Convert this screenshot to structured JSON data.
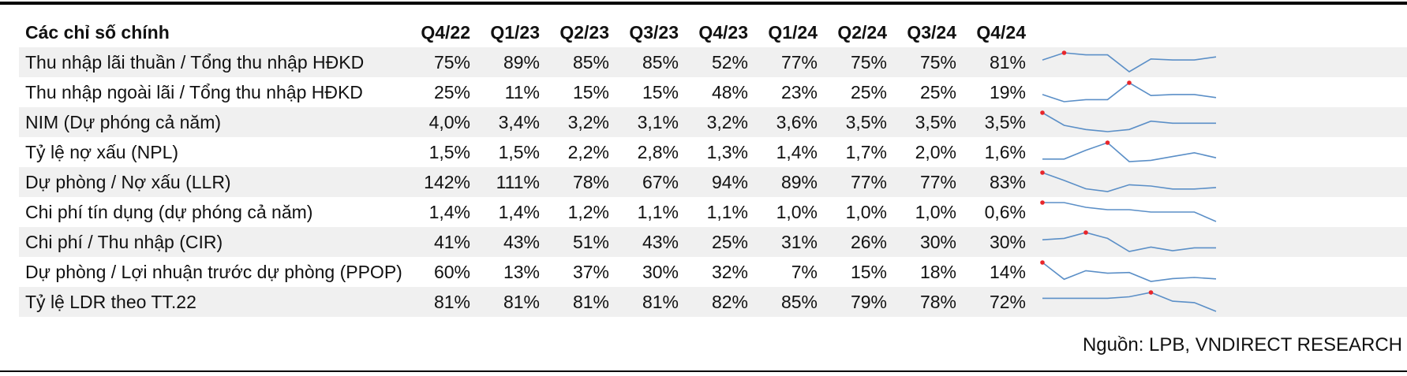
{
  "table": {
    "header_label": "Các chỉ số chính",
    "columns": [
      "Q4/22",
      "Q1/23",
      "Q2/23",
      "Q3/23",
      "Q4/23",
      "Q1/24",
      "Q2/24",
      "Q3/24",
      "Q4/24"
    ],
    "rows": [
      {
        "label": "Thu nhập lãi thuần / Tổng thu nhập HĐKD",
        "values": [
          "75%",
          "89%",
          "85%",
          "85%",
          "52%",
          "77%",
          "75%",
          "75%",
          "81%"
        ],
        "series": [
          75,
          89,
          85,
          85,
          52,
          77,
          75,
          75,
          81
        ]
      },
      {
        "label": "Thu nhập ngoài lãi / Tổng thu nhập HĐKD",
        "values": [
          "25%",
          "11%",
          "15%",
          "15%",
          "48%",
          "23%",
          "25%",
          "25%",
          "19%"
        ],
        "series": [
          25,
          11,
          15,
          15,
          48,
          23,
          25,
          25,
          19
        ]
      },
      {
        "label": "NIM (Dự phóng cả năm)",
        "values": [
          "4,0%",
          "3,4%",
          "3,2%",
          "3,1%",
          "3,2%",
          "3,6%",
          "3,5%",
          "3,5%",
          "3,5%"
        ],
        "series": [
          4.0,
          3.4,
          3.2,
          3.1,
          3.2,
          3.6,
          3.5,
          3.5,
          3.5
        ]
      },
      {
        "label": "Tỷ lệ nợ xấu (NPL)",
        "values": [
          "1,5%",
          "1,5%",
          "2,2%",
          "2,8%",
          "1,3%",
          "1,4%",
          "1,7%",
          "2,0%",
          "1,6%"
        ],
        "series": [
          1.5,
          1.5,
          2.2,
          2.8,
          1.3,
          1.4,
          1.7,
          2.0,
          1.6
        ]
      },
      {
        "label": "Dự phòng / Nợ xấu (LLR)",
        "values": [
          "142%",
          "111%",
          "78%",
          "67%",
          "94%",
          "89%",
          "77%",
          "77%",
          "83%"
        ],
        "series": [
          142,
          111,
          78,
          67,
          94,
          89,
          77,
          77,
          83
        ]
      },
      {
        "label": "Chi phí tín dụng (dự phóng cả năm)",
        "values": [
          "1,4%",
          "1,4%",
          "1,2%",
          "1,1%",
          "1,1%",
          "1,0%",
          "1,0%",
          "1,0%",
          "0,6%"
        ],
        "series": [
          1.4,
          1.4,
          1.2,
          1.1,
          1.1,
          1.0,
          1.0,
          1.0,
          0.6
        ]
      },
      {
        "label": "Chi phí / Thu nhập (CIR)",
        "values": [
          "41%",
          "43%",
          "51%",
          "43%",
          "25%",
          "31%",
          "26%",
          "30%",
          "30%"
        ],
        "series": [
          41,
          43,
          51,
          43,
          25,
          31,
          26,
          30,
          30
        ]
      },
      {
        "label": "Dự phòng / Lợi nhuận trước dự phòng (PPOP)",
        "values": [
          "60%",
          "13%",
          "37%",
          "30%",
          "32%",
          "7%",
          "15%",
          "18%",
          "14%"
        ],
        "series": [
          60,
          13,
          37,
          30,
          32,
          7,
          15,
          18,
          14
        ]
      },
      {
        "label": "Tỷ lệ LDR theo TT.22",
        "values": [
          "81%",
          "81%",
          "81%",
          "81%",
          "82%",
          "85%",
          "79%",
          "78%",
          "72%"
        ],
        "series": [
          81,
          81,
          81,
          81,
          82,
          85,
          79,
          78,
          72
        ]
      }
    ]
  },
  "source": "Nguồn: LPB, VNDIRECT RESEARCH",
  "colors": {
    "sparkline": "#5b8fc7",
    "max_marker": "#e8262b",
    "row_band": "#f0f0f0"
  }
}
